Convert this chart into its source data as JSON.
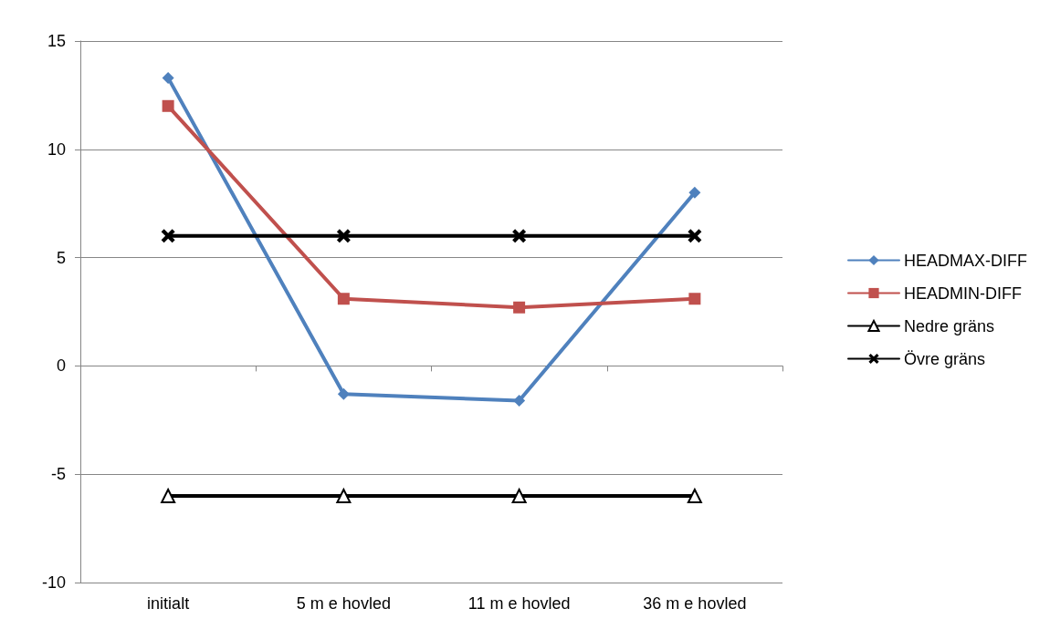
{
  "chart_data": {
    "type": "line",
    "categories": [
      "initialt",
      "5 m e hovled",
      "11 m e hovled",
      "36 m e hovled"
    ],
    "series": [
      {
        "name": "HEADMAX-DIFF",
        "color": "#4f81bd",
        "marker": "diamond",
        "values": [
          13.3,
          -1.3,
          -1.6,
          8.0
        ]
      },
      {
        "name": "HEADMIN-DIFF",
        "color": "#c0504d",
        "marker": "square",
        "values": [
          12.0,
          3.1,
          2.7,
          3.1
        ]
      },
      {
        "name": "Nedre gräns",
        "color": "#000000",
        "marker": "triangle",
        "values": [
          -6,
          -6,
          -6,
          -6
        ]
      },
      {
        "name": "Övre gräns",
        "color": "#000000",
        "marker": "cross",
        "values": [
          6,
          6,
          6,
          6
        ]
      }
    ],
    "ylim": [
      -10,
      15
    ],
    "yticks": [
      -10,
      -5,
      0,
      5,
      10,
      15
    ],
    "grid": "y",
    "legend": "right",
    "line_style": "solid"
  }
}
